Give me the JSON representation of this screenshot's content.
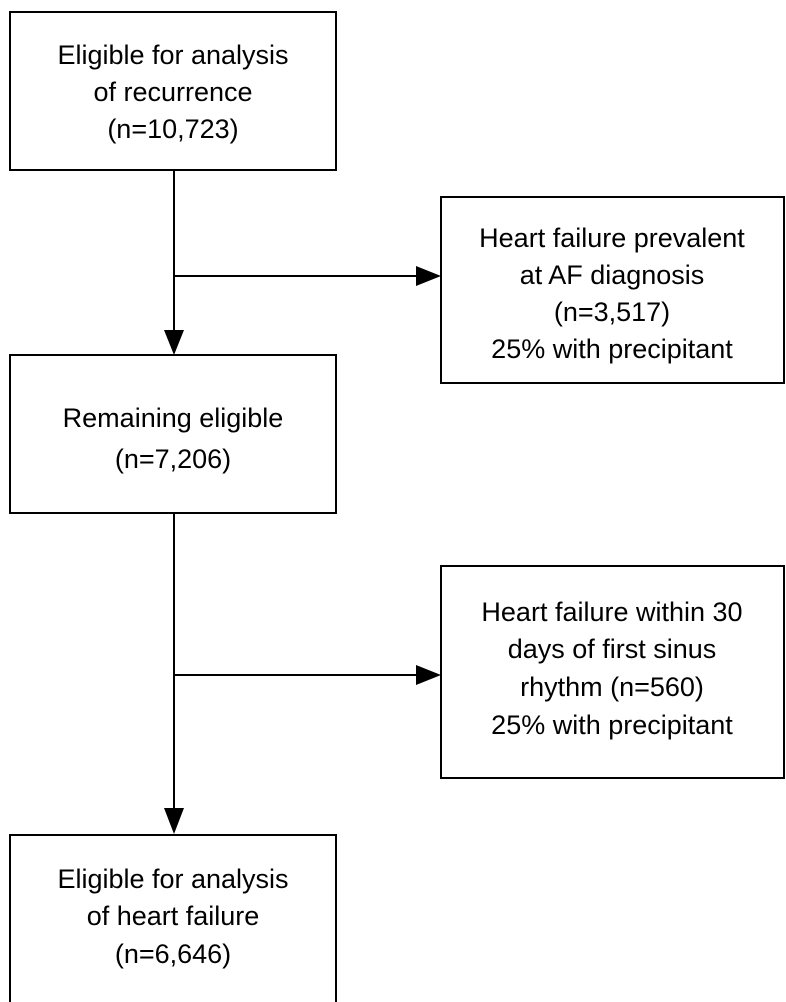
{
  "nodes": [
    {
      "lines": [
        "Eligible for analysis",
        "of recurrence",
        "(n=10,723)"
      ]
    },
    {
      "lines": [
        "Heart failure prevalent",
        "at AF diagnosis",
        "(n=3,517)",
        "25% with precipitant"
      ]
    },
    {
      "lines": [
        "Remaining eligible",
        "(n=7,206)"
      ]
    },
    {
      "lines": [
        "Heart failure within 30",
        "days of first sinus",
        "rhythm (n=560)",
        "25% with precipitant"
      ]
    },
    {
      "lines": [
        "Eligible for analysis",
        "of heart failure",
        "(n=6,646)"
      ]
    }
  ]
}
